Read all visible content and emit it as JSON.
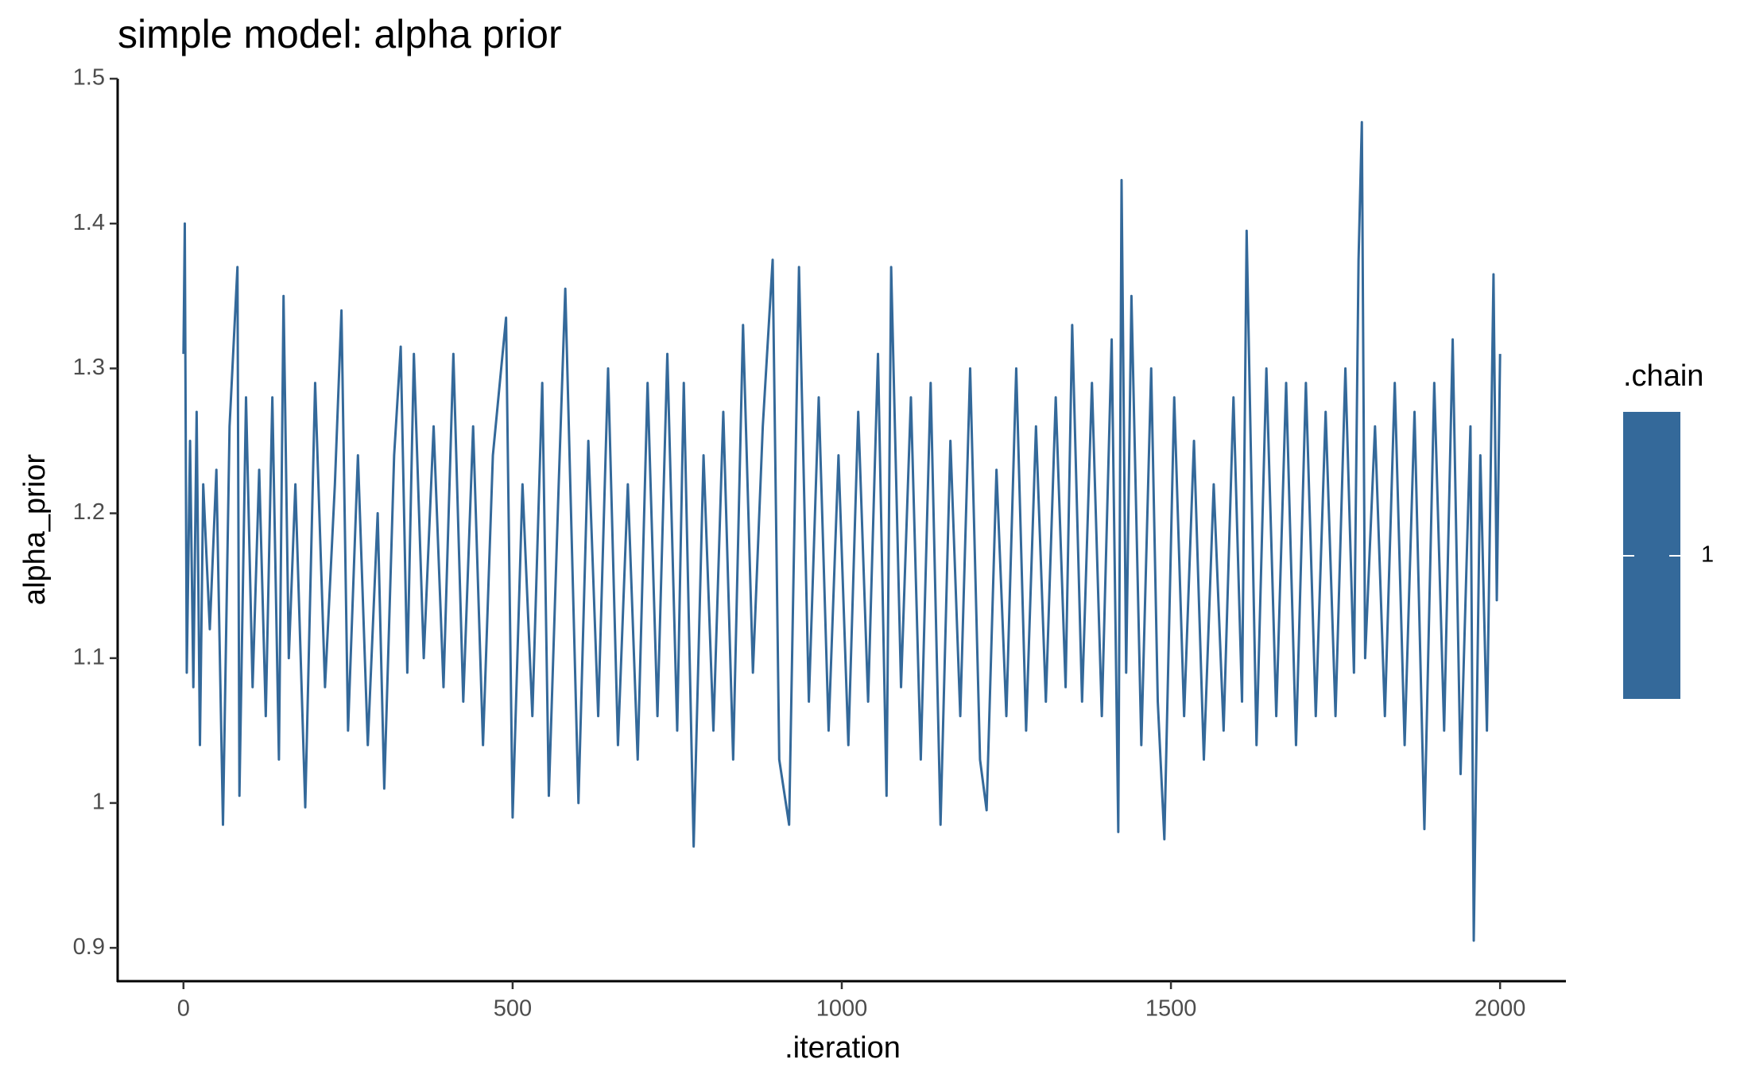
{
  "chart_data": {
    "type": "line",
    "title": "simple model: alpha prior",
    "xlabel": ".iteration",
    "ylabel": "alpha_prior",
    "legend_title": ".chain",
    "x": [
      0,
      2,
      5,
      10,
      15,
      20,
      25,
      30,
      40,
      50,
      60,
      70,
      82,
      85,
      95,
      105,
      115,
      125,
      135,
      145,
      152,
      160,
      170,
      185,
      200,
      215,
      230,
      240,
      250,
      265,
      280,
      295,
      305,
      320,
      330,
      340,
      350,
      365,
      380,
      395,
      410,
      425,
      440,
      455,
      470,
      490,
      500,
      515,
      530,
      545,
      555,
      570,
      580,
      600,
      615,
      630,
      645,
      660,
      675,
      690,
      705,
      720,
      735,
      750,
      760,
      775,
      790,
      805,
      820,
      835,
      850,
      865,
      880,
      895,
      905,
      920,
      935,
      950,
      965,
      980,
      995,
      1010,
      1025,
      1040,
      1055,
      1068,
      1075,
      1090,
      1105,
      1120,
      1135,
      1150,
      1165,
      1180,
      1195,
      1210,
      1220,
      1235,
      1250,
      1265,
      1280,
      1295,
      1310,
      1325,
      1340,
      1350,
      1365,
      1380,
      1395,
      1410,
      1420,
      1425,
      1432,
      1440,
      1455,
      1470,
      1480,
      1490,
      1505,
      1520,
      1535,
      1550,
      1565,
      1580,
      1595,
      1608,
      1615,
      1630,
      1645,
      1660,
      1675,
      1690,
      1705,
      1720,
      1735,
      1750,
      1765,
      1778,
      1785,
      1790,
      1795,
      1810,
      1825,
      1840,
      1855,
      1870,
      1885,
      1900,
      1915,
      1928,
      1940,
      1955,
      1960,
      1970,
      1980,
      1990,
      1995,
      2000
    ],
    "series": [
      {
        "name": "1",
        "color": "#34699a",
        "values": [
          1.31,
          1.4,
          1.09,
          1.25,
          1.08,
          1.27,
          1.04,
          1.22,
          1.12,
          1.23,
          0.985,
          1.26,
          1.37,
          1.005,
          1.28,
          1.08,
          1.23,
          1.06,
          1.28,
          1.03,
          1.35,
          1.1,
          1.22,
          0.997,
          1.29,
          1.08,
          1.22,
          1.34,
          1.05,
          1.24,
          1.04,
          1.2,
          1.01,
          1.24,
          1.315,
          1.09,
          1.31,
          1.1,
          1.26,
          1.08,
          1.31,
          1.07,
          1.26,
          1.04,
          1.24,
          1.335,
          0.99,
          1.22,
          1.06,
          1.29,
          1.005,
          1.22,
          1.355,
          1.0,
          1.25,
          1.06,
          1.3,
          1.04,
          1.22,
          1.03,
          1.29,
          1.06,
          1.31,
          1.05,
          1.29,
          0.97,
          1.24,
          1.05,
          1.27,
          1.03,
          1.33,
          1.09,
          1.26,
          1.375,
          1.03,
          0.985,
          1.37,
          1.07,
          1.28,
          1.05,
          1.24,
          1.04,
          1.27,
          1.07,
          1.31,
          1.005,
          1.37,
          1.08,
          1.28,
          1.03,
          1.29,
          0.985,
          1.25,
          1.06,
          1.3,
          1.03,
          0.995,
          1.23,
          1.06,
          1.3,
          1.05,
          1.26,
          1.07,
          1.28,
          1.08,
          1.33,
          1.07,
          1.29,
          1.06,
          1.32,
          0.98,
          1.43,
          1.09,
          1.35,
          1.04,
          1.3,
          1.07,
          0.975,
          1.28,
          1.06,
          1.25,
          1.03,
          1.22,
          1.05,
          1.28,
          1.07,
          1.395,
          1.04,
          1.3,
          1.06,
          1.29,
          1.04,
          1.29,
          1.06,
          1.27,
          1.06,
          1.3,
          1.09,
          1.375,
          1.47,
          1.1,
          1.26,
          1.06,
          1.29,
          1.04,
          1.27,
          0.982,
          1.29,
          1.05,
          1.32,
          1.02,
          1.26,
          0.905,
          1.24,
          1.05,
          1.365,
          1.14,
          1.31
        ]
      }
    ],
    "xlim": [
      -100,
      2100
    ],
    "xticks": [
      0,
      500,
      1000,
      1500,
      2000
    ],
    "ylim": [
      0.877,
      1.5
    ],
    "yticks": [
      0.9,
      1.0,
      1.1,
      1.2,
      1.3,
      1.4,
      1.5
    ]
  }
}
